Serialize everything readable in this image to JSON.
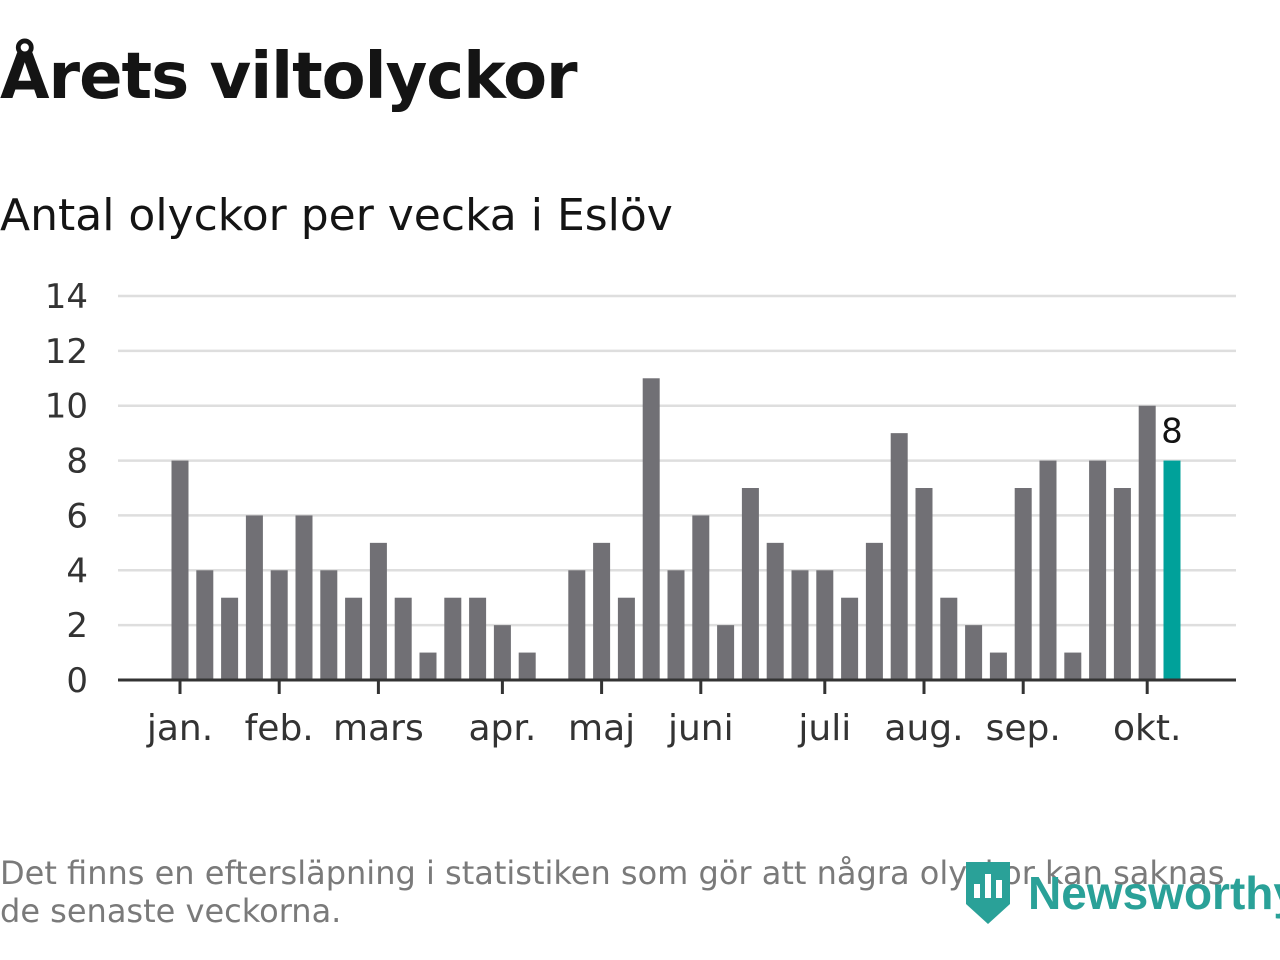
{
  "title": "Årets viltolyckor",
  "subtitle": "Antal olyckor per vecka i Eslöv",
  "footnote": "Det finns en eftersläpning i statistiken som gör att några olyckor kan saknas de senaste veckorna.",
  "brand": {
    "name": "Newsworthy",
    "color": "#2aa198"
  },
  "colors": {
    "bar": "#717075",
    "highlight": "#00a19a",
    "grid": "#dedede",
    "axis": "#333333"
  },
  "chart_data": {
    "type": "bar",
    "title": "Årets viltolyckor",
    "subtitle": "Antal olyckor per vecka i Eslöv",
    "xlabel": "",
    "ylabel": "",
    "ylim": [
      0,
      14
    ],
    "yticks": [
      0,
      2,
      4,
      6,
      8,
      10,
      12,
      14
    ],
    "grid": true,
    "weeks": [
      1,
      2,
      3,
      4,
      5,
      6,
      7,
      8,
      9,
      10,
      11,
      12,
      13,
      14,
      15,
      16,
      17,
      18,
      19,
      20,
      21,
      22,
      23,
      24,
      25,
      26,
      27,
      28,
      29,
      30,
      31,
      32,
      33,
      34,
      35,
      36,
      37,
      38,
      39,
      40,
      41
    ],
    "values": [
      8,
      4,
      3,
      6,
      4,
      6,
      4,
      3,
      5,
      3,
      1,
      3,
      3,
      2,
      1,
      0,
      4,
      5,
      3,
      11,
      4,
      6,
      2,
      7,
      5,
      4,
      4,
      3,
      5,
      9,
      7,
      3,
      2,
      1,
      7,
      8,
      1,
      8,
      7,
      10,
      8
    ],
    "highlight_index": 40,
    "highlight_label": "8",
    "month_ticks": [
      {
        "label": "jan.",
        "week": 1
      },
      {
        "label": "feb.",
        "week": 5
      },
      {
        "label": "mars",
        "week": 9
      },
      {
        "label": "apr.",
        "week": 14
      },
      {
        "label": "maj",
        "week": 18
      },
      {
        "label": "juni",
        "week": 22
      },
      {
        "label": "juli",
        "week": 27
      },
      {
        "label": "aug.",
        "week": 31
      },
      {
        "label": "sep.",
        "week": 35
      },
      {
        "label": "okt.",
        "week": 40
      }
    ]
  }
}
